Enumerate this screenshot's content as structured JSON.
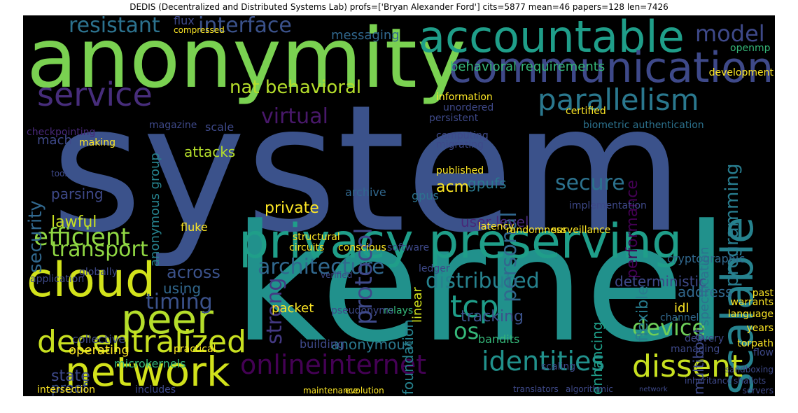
{
  "figure": {
    "title": "DEDIS (Decentralized and Distributed Systems Lab) profs=['Bryan Alexander Ford'] cits=5877 mean=46 papers=128 len=7426"
  },
  "colors": {
    "background": "#000000",
    "palette": [
      "#440154",
      "#482878",
      "#3e4989",
      "#31688e",
      "#26828e",
      "#1f9e89",
      "#35b779",
      "#6ece58",
      "#b5de2b",
      "#fde725"
    ]
  },
  "words": [
    {
      "text": "system",
      "color": "#3b528b"
    },
    {
      "text": "kernel",
      "color": "#21918c"
    },
    {
      "text": "anonymity",
      "color": "#7ad151"
    },
    {
      "text": "accountable",
      "color": "#1f9e89"
    },
    {
      "text": "communication",
      "color": "#3e4989"
    },
    {
      "text": "privacy preserving",
      "color": "#1f9e89"
    },
    {
      "text": "cloud",
      "color": "#d2e21b"
    },
    {
      "text": "network",
      "color": "#d2e21b"
    },
    {
      "text": "peer",
      "color": "#b5de2b"
    },
    {
      "text": "decentralized",
      "color": "#c8e020"
    },
    {
      "text": "scalable",
      "color": "#26828e"
    },
    {
      "text": "service",
      "color": "#472d7b"
    },
    {
      "text": "parallelism",
      "color": "#2a788e"
    },
    {
      "text": "identities",
      "color": "#21918c"
    },
    {
      "text": "dissent",
      "color": "#c8e020"
    },
    {
      "text": "onlineinternet",
      "color": "#440154"
    },
    {
      "text": "tcp",
      "color": "#1f9e89"
    },
    {
      "text": "os",
      "color": "#35b779"
    },
    {
      "text": "device",
      "color": "#6ece58"
    },
    {
      "text": "model",
      "color": "#3e4989"
    },
    {
      "text": "resistant",
      "color": "#2c728e"
    },
    {
      "text": "interface",
      "color": "#3b528b"
    },
    {
      "text": "efficient",
      "color": "#90d743"
    },
    {
      "text": "transport",
      "color": "#90d743"
    },
    {
      "text": "architecture",
      "color": "#31688e"
    },
    {
      "text": "distributed",
      "color": "#26828e"
    },
    {
      "text": "personal",
      "color": "#31688e"
    },
    {
      "text": "protocol",
      "color": "#3e4989"
    },
    {
      "text": "strong",
      "color": "#443983"
    },
    {
      "text": "virtual",
      "color": "#48186a"
    },
    {
      "text": "nat behavioral",
      "color": "#b5de2b"
    },
    {
      "text": "security",
      "color": "#31688e"
    },
    {
      "text": "programming",
      "color": "#287c8e"
    },
    {
      "text": "secure",
      "color": "#2c728e"
    },
    {
      "text": "timing",
      "color": "#3b528b"
    },
    {
      "text": "performance",
      "color": "#440154"
    },
    {
      "text": "flexible",
      "color": "#287c8e"
    },
    {
      "text": "specification",
      "color": "#2c728e"
    },
    {
      "text": "multiboot",
      "color": "#3e4989"
    },
    {
      "text": "enhancing",
      "color": "#1f9e89"
    },
    {
      "text": "foundation",
      "color": "#26828e"
    },
    {
      "text": "tracking",
      "color": "#3b528b"
    },
    {
      "text": "anonymous",
      "color": "#2a788e"
    },
    {
      "text": "packet",
      "color": "#fde725"
    },
    {
      "text": "across",
      "color": "#3b528b"
    },
    {
      "text": "using",
      "color": "#31688e"
    },
    {
      "text": "state",
      "color": "#3e4989"
    },
    {
      "text": "proof",
      "color": "#3b528b"
    },
    {
      "text": "lawful",
      "color": "#c8e020"
    },
    {
      "text": "parsing",
      "color": "#3e4989"
    },
    {
      "text": "mach",
      "color": "#3e4989"
    },
    {
      "text": "anonymous group",
      "color": "#26828e"
    },
    {
      "text": "attacks",
      "color": "#b5de2b"
    },
    {
      "text": "gpufs",
      "color": "#2a788e"
    },
    {
      "text": "acm",
      "color": "#fde725"
    },
    {
      "text": "private",
      "color": "#fde725"
    },
    {
      "text": "user level",
      "color": "#482878"
    },
    {
      "text": "deterministic",
      "color": "#3e4989"
    },
    {
      "text": "address",
      "color": "#31688e"
    },
    {
      "text": "messaging",
      "color": "#31688e"
    },
    {
      "text": "behavioral requirements",
      "color": "#35b779"
    },
    {
      "text": "biometric authentication",
      "color": "#2c728e"
    },
    {
      "text": "cryptographic",
      "color": "#31688e"
    },
    {
      "text": "linear",
      "color": "#d2e21b"
    },
    {
      "text": "archive",
      "color": "#31688e"
    },
    {
      "text": "gpus",
      "color": "#2c728e"
    },
    {
      "text": "scale",
      "color": "#3e4989"
    },
    {
      "text": "checkpointing",
      "color": "#482878"
    },
    {
      "text": "magazine",
      "color": "#3e4989"
    },
    {
      "text": "relays",
      "color": "#35b779"
    },
    {
      "text": "bandits",
      "color": "#35b779"
    },
    {
      "text": "flux",
      "color": "#3e4989"
    },
    {
      "text": "compressed",
      "color": "#fde725"
    },
    {
      "text": "fluke",
      "color": "#fde725"
    },
    {
      "text": "operating",
      "color": "#fde725"
    },
    {
      "text": "collective",
      "color": "#3e4989"
    },
    {
      "text": "building",
      "color": "#3e4989"
    },
    {
      "text": "idl",
      "color": "#fde725"
    },
    {
      "text": "language",
      "color": "#fde725"
    },
    {
      "text": "delivery",
      "color": "#3e4989"
    },
    {
      "text": "years",
      "color": "#fde725"
    },
    {
      "text": "warrants",
      "color": "#fde725"
    },
    {
      "text": "channel",
      "color": "#31688e"
    },
    {
      "text": "past",
      "color": "#fde725"
    },
    {
      "text": "flow",
      "color": "#3e4989"
    },
    {
      "text": "torpath",
      "color": "#fde725"
    },
    {
      "text": "managing",
      "color": "#3e4989"
    },
    {
      "text": "scaling",
      "color": "#3e4989"
    },
    {
      "text": "microkernels",
      "color": "#35b779"
    },
    {
      "text": "intersection",
      "color": "#fde725"
    },
    {
      "text": "includes",
      "color": "#3e4989"
    },
    {
      "text": "maintenance",
      "color": "#fde725"
    },
    {
      "text": "evolution",
      "color": "#fde725"
    },
    {
      "text": "translators",
      "color": "#3e4989"
    },
    {
      "text": "algorithmic",
      "color": "#3e4989"
    },
    {
      "text": "inheritance",
      "color": "#3e4989"
    },
    {
      "text": "shallots",
      "color": "#3e4989"
    },
    {
      "text": "servers",
      "color": "#3e4989"
    },
    {
      "text": "sandboxing",
      "color": "#3e4989"
    },
    {
      "text": "openmp",
      "color": "#35b779"
    },
    {
      "text": "development",
      "color": "#fde725"
    },
    {
      "text": "information",
      "color": "#fde725"
    },
    {
      "text": "unordered",
      "color": "#3e4989"
    },
    {
      "text": "persistent",
      "color": "#3e4989"
    },
    {
      "text": "computing",
      "color": "#3e4989"
    },
    {
      "text": "migrating",
      "color": "#3e4989"
    },
    {
      "text": "certified",
      "color": "#fde725"
    },
    {
      "text": "published",
      "color": "#fde725"
    },
    {
      "text": "implementation",
      "color": "#3e4989"
    },
    {
      "text": "randomness",
      "color": "#fde725"
    },
    {
      "text": "surveillance",
      "color": "#fde725"
    },
    {
      "text": "latency",
      "color": "#fde725"
    },
    {
      "text": "software",
      "color": "#3e4989"
    },
    {
      "text": "conscious",
      "color": "#fde725"
    },
    {
      "text": "circuits",
      "color": "#fde725"
    },
    {
      "text": "structural",
      "color": "#fde725"
    },
    {
      "text": "ledger",
      "color": "#3e4989"
    },
    {
      "text": "verified",
      "color": "#3e4989"
    },
    {
      "text": "pseudonyms",
      "color": "#3e4989"
    },
    {
      "text": "making",
      "color": "#fde725"
    },
    {
      "text": "tool",
      "color": "#3e4989"
    },
    {
      "text": "application",
      "color": "#3e4989"
    },
    {
      "text": "globally",
      "color": "#3e4989"
    },
    {
      "text": "practical",
      "color": "#fde725"
    },
    {
      "text": "network_small",
      "color": "#3e4989"
    }
  ]
}
